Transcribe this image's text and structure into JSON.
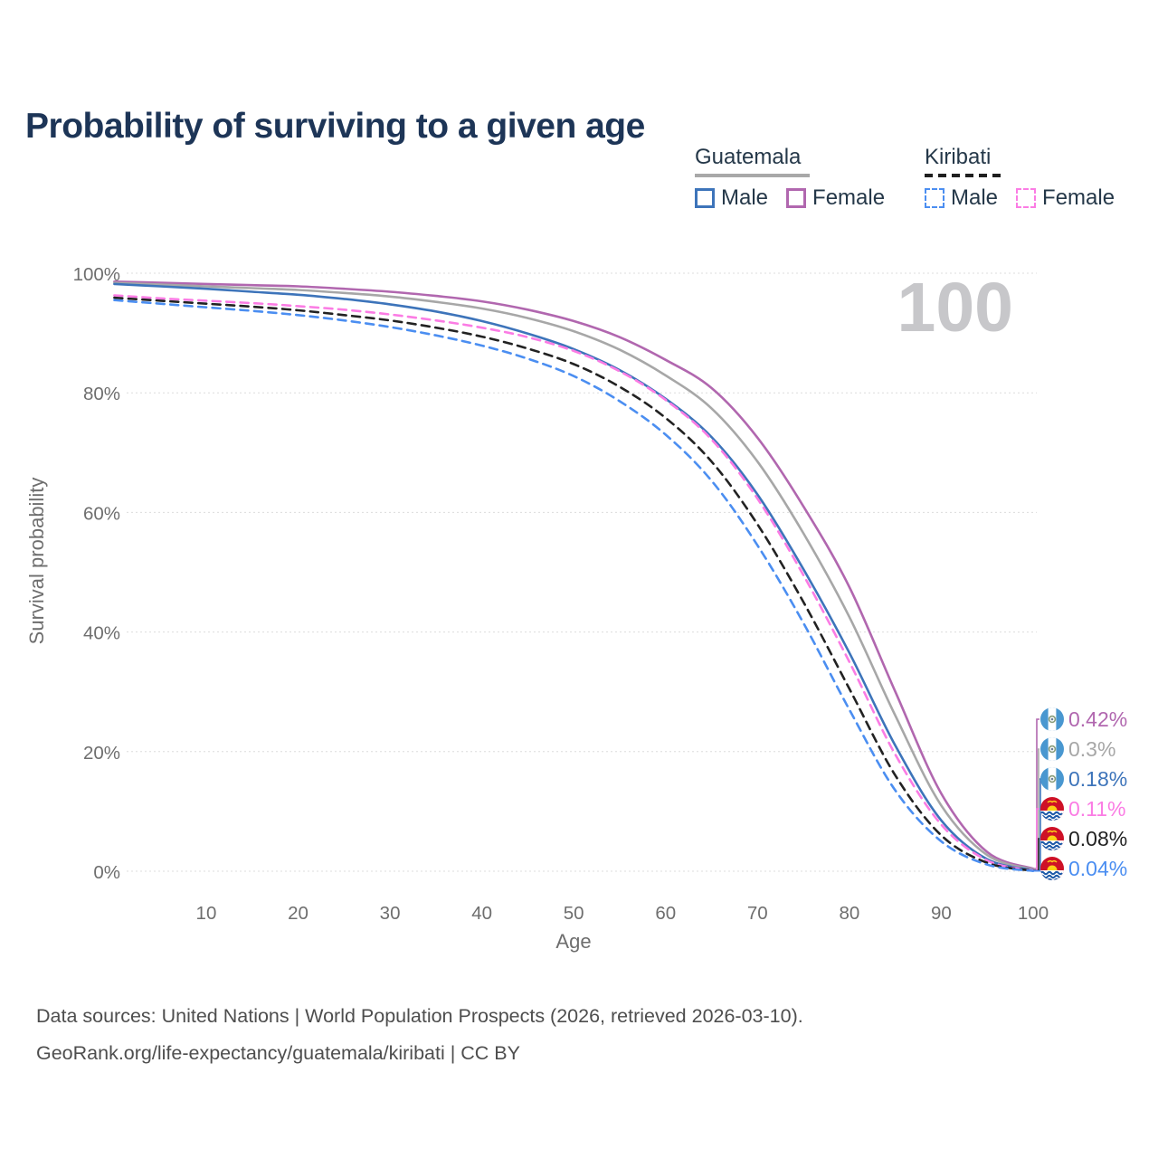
{
  "title": "Probability of surviving to a given age",
  "watermark": "100",
  "legend": {
    "groups": [
      {
        "label": "Guatemala",
        "style": "solid",
        "underline_color": "#a8a8a8",
        "items": [
          {
            "label": "Male",
            "color": "#3d74ba"
          },
          {
            "label": "Female",
            "color": "#b167af"
          }
        ]
      },
      {
        "label": "Kiribati",
        "style": "dashed",
        "underline_color": "#1f1f1f",
        "items": [
          {
            "label": "Male",
            "color": "#4b8ef1"
          },
          {
            "label": "Female",
            "color": "#fb7ce4"
          }
        ]
      }
    ]
  },
  "axes": {
    "x_label": "Age",
    "y_label": "Survival probability"
  },
  "chart_data": {
    "type": "line",
    "title": "Probability of surviving to a given age",
    "xlabel": "Age",
    "ylabel": "Survival probability",
    "xlim": [
      0,
      100
    ],
    "ylim": [
      0,
      100
    ],
    "grid": true,
    "grid_style": "dotted",
    "legend_position": "top-right",
    "x": [
      0,
      5,
      10,
      15,
      20,
      25,
      30,
      35,
      40,
      45,
      50,
      55,
      60,
      65,
      70,
      75,
      80,
      85,
      90,
      95,
      100
    ],
    "xticks": [
      10,
      20,
      30,
      40,
      50,
      60,
      70,
      80,
      90,
      100
    ],
    "yticks": [
      {
        "value": 0,
        "label": "0%"
      },
      {
        "value": 20,
        "label": "20%"
      },
      {
        "value": 40,
        "label": "40%"
      },
      {
        "value": 60,
        "label": "60%"
      },
      {
        "value": 80,
        "label": "80%"
      },
      {
        "value": 100,
        "label": "100%"
      }
    ],
    "series": [
      {
        "name": "Guatemala Female",
        "country": "Guatemala",
        "sex": "Female",
        "color": "#b167af",
        "dash": "solid",
        "flag": "guatemala",
        "end_label": "0.42%",
        "values": [
          98.6,
          98.4,
          98.2,
          98.0,
          97.8,
          97.4,
          96.9,
          96.2,
          95.3,
          93.9,
          92.0,
          89.3,
          85.5,
          80.8,
          72.5,
          61.0,
          47.5,
          30.0,
          13.0,
          3.2,
          0.42
        ]
      },
      {
        "name": "Guatemala",
        "country": "Guatemala",
        "sex": "Both",
        "color": "#a7a7a7",
        "dash": "solid",
        "flag": "guatemala",
        "end_label": "0.3%",
        "values": [
          98.4,
          98.1,
          97.8,
          97.5,
          97.2,
          96.7,
          96.1,
          95.2,
          94.1,
          92.5,
          90.3,
          87.2,
          82.9,
          77.4,
          68.5,
          56.5,
          42.5,
          26.0,
          11.0,
          2.7,
          0.3
        ]
      },
      {
        "name": "Guatemala Male",
        "country": "Guatemala",
        "sex": "Male",
        "color": "#3d74ba",
        "dash": "solid",
        "flag": "guatemala",
        "end_label": "0.18%",
        "values": [
          98.2,
          97.8,
          97.4,
          96.9,
          96.4,
          95.7,
          94.8,
          93.6,
          92.0,
          89.9,
          87.3,
          83.8,
          79.0,
          72.6,
          63.0,
          50.5,
          36.5,
          21.0,
          8.5,
          2.0,
          0.18
        ]
      },
      {
        "name": "Kiribati Female",
        "country": "Kiribati",
        "sex": "Female",
        "color": "#fb7ce4",
        "dash": "dashed",
        "flag": "kiribati",
        "end_label": "0.11%",
        "values": [
          96.3,
          95.8,
          95.4,
          95.0,
          94.5,
          93.9,
          93.1,
          92.1,
          90.9,
          89.3,
          87.0,
          83.6,
          78.8,
          72.2,
          62.3,
          49.5,
          35.0,
          19.5,
          7.8,
          1.8,
          0.11
        ]
      },
      {
        "name": "Kiribati",
        "country": "Kiribati",
        "sex": "Both",
        "color": "#222222",
        "dash": "dashed",
        "flag": "kiribati",
        "end_label": "0.08%",
        "values": [
          95.9,
          95.4,
          94.9,
          94.4,
          93.8,
          93.0,
          92.1,
          90.9,
          89.4,
          87.4,
          84.8,
          81.0,
          75.8,
          68.5,
          58.0,
          45.0,
          30.5,
          16.0,
          6.0,
          1.4,
          0.08
        ]
      },
      {
        "name": "Kiribati Male",
        "country": "Kiribati",
        "sex": "Male",
        "color": "#4b8ef1",
        "dash": "dashed",
        "flag": "kiribati",
        "end_label": "0.04%",
        "values": [
          95.5,
          94.9,
          94.3,
          93.7,
          93.0,
          92.1,
          91.0,
          89.6,
          87.9,
          85.7,
          82.8,
          78.6,
          73.0,
          65.3,
          54.5,
          41.5,
          27.0,
          13.5,
          5.0,
          1.1,
          0.04
        ]
      }
    ]
  },
  "footer": {
    "line1": "Data sources: United Nations | World Population Prospects (2026, retrieved 2026-03-10).",
    "line2": "GeoRank.org/life-expectancy/guatemala/kiribati | CC BY"
  }
}
